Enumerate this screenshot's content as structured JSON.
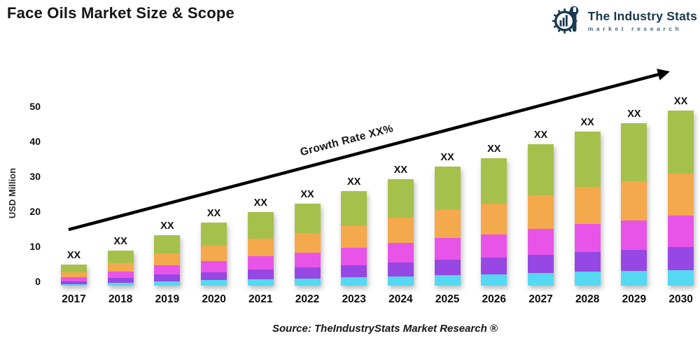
{
  "header": {
    "title": "Face Oils Market Size & Scope",
    "logo": {
      "title": "The Industry Stats",
      "subtitle": "market research",
      "brand_color": "#16384e"
    }
  },
  "chart_data": {
    "type": "bar",
    "stacked": true,
    "title": "Face Oils Market Size & Scope",
    "xlabel": "",
    "ylabel": "USD Million",
    "ylim": [
      0,
      50
    ],
    "yticks": [
      0,
      10,
      20,
      30,
      40,
      50
    ],
    "grid": false,
    "legend": "none",
    "categories": [
      "2017",
      "2018",
      "2019",
      "2020",
      "2021",
      "2022",
      "2023",
      "2024",
      "2025",
      "2026",
      "2027",
      "2028",
      "2029",
      "2030"
    ],
    "bar_value_label": "XX",
    "series": [
      {
        "name": "cyan-segment",
        "color": "#55d8f2",
        "values": [
          0.5,
          0.9,
          1.3,
          1.6,
          1.9,
          2.1,
          2.4,
          2.7,
          3.1,
          3.3,
          3.6,
          4.0,
          4.2,
          4.5
        ]
      },
      {
        "name": "purple-segment",
        "color": "#9747e3",
        "values": [
          0.8,
          1.3,
          1.9,
          2.3,
          2.7,
          3.1,
          3.5,
          4.0,
          4.4,
          4.7,
          5.3,
          5.7,
          6.0,
          6.5
        ]
      },
      {
        "name": "magenta-segment",
        "color": "#e854e8",
        "values": [
          1.1,
          1.8,
          2.6,
          3.2,
          3.8,
          4.2,
          4.9,
          5.5,
          6.1,
          6.6,
          7.3,
          7.9,
          8.4,
          9.0
        ]
      },
      {
        "name": "orange-segment",
        "color": "#f3a94c",
        "values": [
          1.4,
          2.4,
          3.5,
          4.3,
          5.0,
          5.6,
          6.5,
          7.3,
          8.2,
          8.8,
          9.7,
          10.6,
          11.2,
          12.0
        ]
      },
      {
        "name": "green-segment",
        "color": "#a6c04c",
        "values": [
          2.2,
          3.6,
          5.2,
          6.6,
          7.6,
          8.5,
          9.7,
          11.0,
          12.2,
          13.1,
          14.6,
          15.8,
          16.7,
          18.0
        ]
      }
    ],
    "totals": [
      6,
      10,
      14.5,
      18,
      21,
      23.5,
      27,
      30.5,
      34,
      36.5,
      40.5,
      44,
      46.5,
      50
    ],
    "annotation": {
      "text": "Growth Rate XX%"
    },
    "arrow_color": "#000000"
  },
  "footer": {
    "source": "Source: TheIndustryStats Market Research ®"
  }
}
